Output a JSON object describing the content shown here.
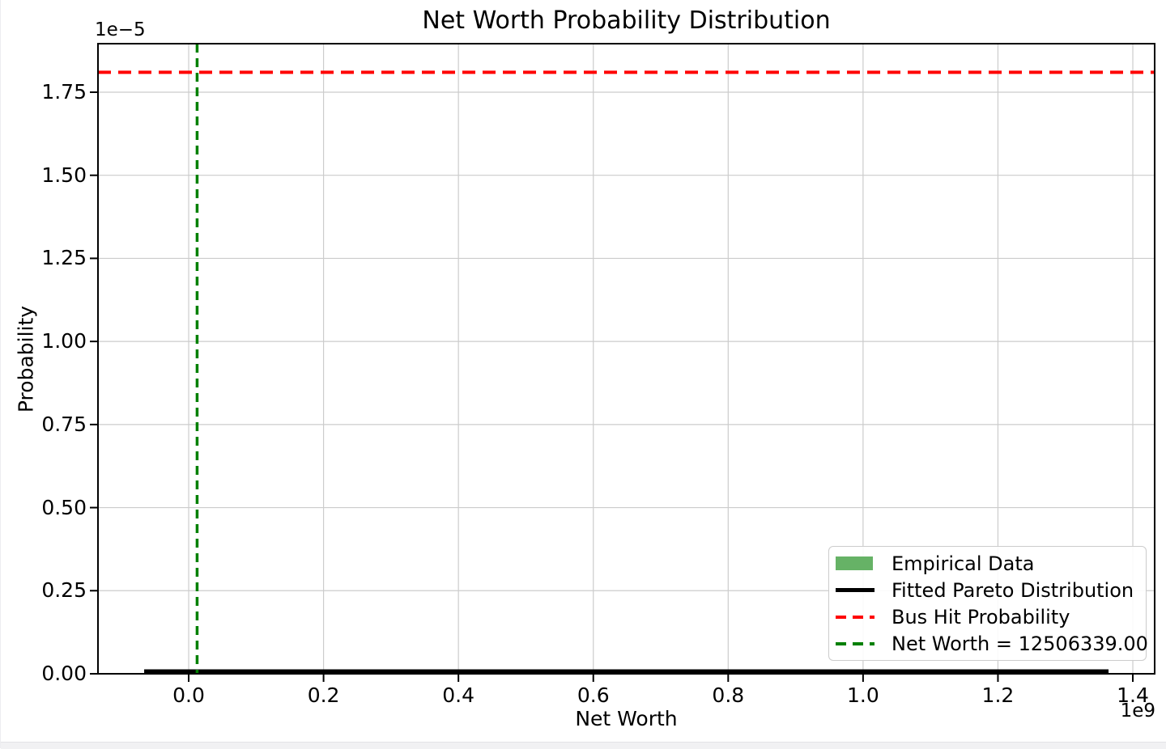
{
  "page": {
    "bottom_strip_color": "#f1f1f3",
    "figure_background": "#ffffff"
  },
  "chart_data": {
    "type": "hist",
    "title": "Net Worth Probability Distribution",
    "xlabel": "Net Worth",
    "ylabel": "Probability",
    "x_offset_label": "1e9",
    "y_offset_label": "1e−5",
    "grid": true,
    "xlim": [
      -134500000,
      1432400000
    ],
    "ylim": [
      0,
      1.896e-05
    ],
    "x_ticks": [
      {
        "value": 0,
        "label": "0.0"
      },
      {
        "value": 200000000,
        "label": "0.2"
      },
      {
        "value": 400000000,
        "label": "0.4"
      },
      {
        "value": 600000000,
        "label": "0.6"
      },
      {
        "value": 800000000,
        "label": "0.8"
      },
      {
        "value": 1000000000,
        "label": "1.0"
      },
      {
        "value": 1200000000,
        "label": "1.2"
      },
      {
        "value": 1400000000,
        "label": "1.4"
      }
    ],
    "y_ticks": [
      {
        "value": 0,
        "label": "0.00"
      },
      {
        "value": 2.5e-06,
        "label": "0.25"
      },
      {
        "value": 5e-06,
        "label": "0.50"
      },
      {
        "value": 7.5e-06,
        "label": "0.75"
      },
      {
        "value": 1e-05,
        "label": "1.00"
      },
      {
        "value": 1.25e-05,
        "label": "1.25"
      },
      {
        "value": 1.5e-05,
        "label": "1.50"
      },
      {
        "value": 1.75e-05,
        "label": "1.75"
      }
    ],
    "series": [
      {
        "name": "Empirical Data",
        "type": "hist",
        "color": "#66b266",
        "values": []
      },
      {
        "name": "Fitted Pareto Distribution",
        "type": "line",
        "color": "#000000",
        "x_start": -66000000,
        "x_end": 1364000000,
        "y": 0
      },
      {
        "name": "Bus Hit Probability",
        "type": "hline",
        "color": "#ff0000",
        "linestyle": "dashed",
        "y": 1.81e-05
      },
      {
        "name": "Net Worth = 12506339.00",
        "type": "vline",
        "color": "#008000",
        "linestyle": "dashed",
        "x": 12506339
      }
    ],
    "legend": {
      "position": "lower right",
      "items": [
        {
          "label": "Empirical Data",
          "key": "patch",
          "color": "#66b266"
        },
        {
          "label": "Fitted Pareto Distribution",
          "key": "solid-line",
          "color": "#000000"
        },
        {
          "label": "Bus Hit Probability",
          "key": "dashed-line",
          "color": "#ff0000"
        },
        {
          "label": "Net Worth = 12506339.00",
          "key": "dashed-line",
          "color": "#008000"
        }
      ]
    },
    "colors": {
      "grid": "#cccccc",
      "frame": "#000000",
      "bus_hit_line": "#ff0000",
      "net_worth_line": "#008000",
      "pareto_line": "#000000",
      "empirical_patch": "#66b266"
    }
  }
}
